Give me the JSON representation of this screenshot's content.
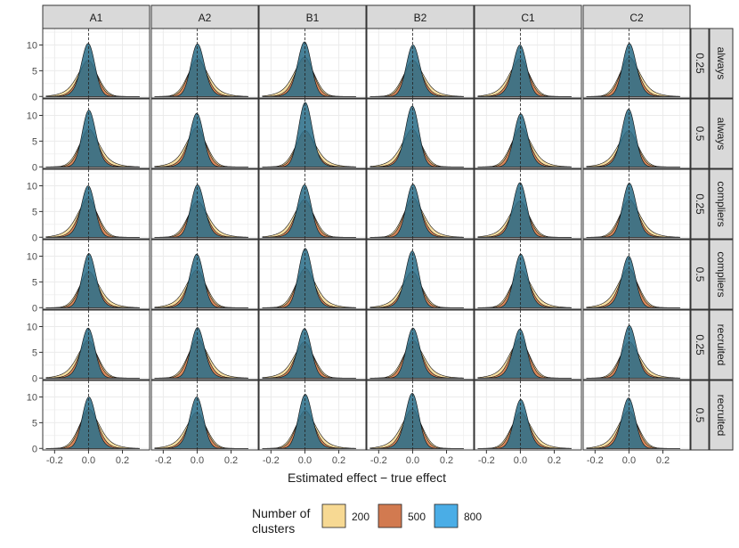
{
  "chart_data": {
    "type": "density-facet-grid",
    "xlabel": "Estimated effect − true effect",
    "ylabel": "",
    "xlim": [
      -0.27,
      0.36
    ],
    "ylim": [
      -0.3,
      13.2
    ],
    "x_ticks": [
      "-0.2",
      "0.0",
      "0.2"
    ],
    "x_tick_values": [
      -0.2,
      0.0,
      0.2
    ],
    "y_ticks": [
      "0",
      "5",
      "10"
    ],
    "y_tick_values": [
      0,
      5,
      10
    ],
    "reference_line_x": 0,
    "columns": [
      "A1",
      "A2",
      "B1",
      "B2",
      "C1",
      "C2"
    ],
    "rows": [
      {
        "strip_outer": "always",
        "strip_inner": "0.25"
      },
      {
        "strip_outer": "always",
        "strip_inner": "0.5"
      },
      {
        "strip_outer": "compliers",
        "strip_inner": "0.25"
      },
      {
        "strip_outer": "compliers",
        "strip_inner": "0.5"
      },
      {
        "strip_outer": "recruited",
        "strip_inner": "0.25"
      },
      {
        "strip_outer": "recruited",
        "strip_inner": "0.5"
      }
    ],
    "legend": {
      "title_line1": "Number of",
      "title_line2": "clusters",
      "position": "bottom"
    },
    "series": [
      {
        "name": "200",
        "color": "#F7D993",
        "peak_density": 7.2,
        "sd": 0.058
      },
      {
        "name": "500",
        "color": "#D27A50",
        "peak_density": 7.8,
        "sd": 0.05
      },
      {
        "name": "800",
        "color": "#4AADE6",
        "peak_density": 10.2,
        "sd": 0.038
      }
    ],
    "peak_heights_800": [
      [
        10.3,
        10.2,
        10.6,
        10.0,
        10.0,
        10.3
      ],
      [
        11.0,
        10.4,
        12.5,
        11.8,
        10.3,
        11.2
      ],
      [
        10.0,
        10.2,
        10.2,
        10.3,
        10.6,
        10.5
      ],
      [
        10.5,
        10.4,
        11.5,
        11.0,
        10.4,
        10.0
      ],
      [
        9.7,
        9.8,
        9.6,
        9.7,
        9.5,
        10.2
      ],
      [
        10.0,
        10.0,
        10.5,
        10.7,
        9.5,
        9.8
      ]
    ],
    "legend_layer_color": "#2E6F8A"
  }
}
